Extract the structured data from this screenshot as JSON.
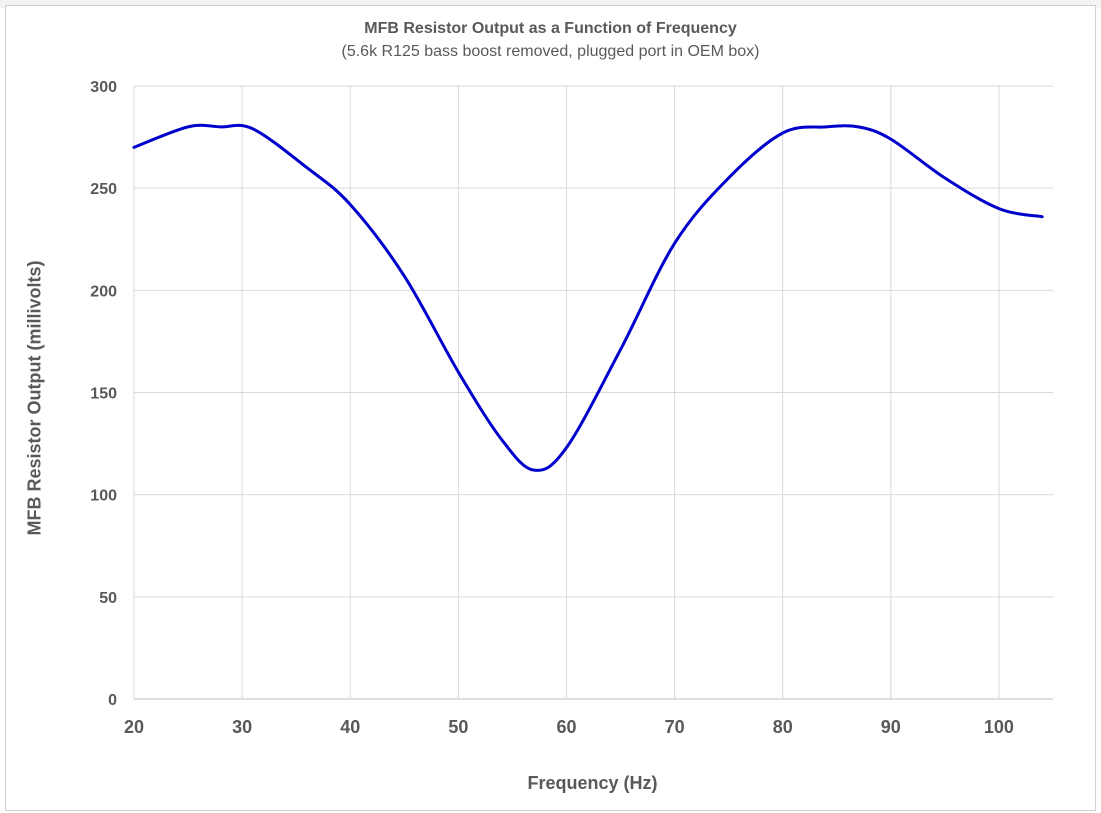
{
  "chart_data": {
    "type": "line",
    "title": "MFB Resistor Output as a Function of Frequency",
    "subtitle": "(5.6k R125 bass boost removed, plugged port in OEM box)",
    "xlabel": "Frequency (Hz)",
    "ylabel": "MFB Resistor Output (millivolts)",
    "xlim": [
      20,
      105
    ],
    "ylim": [
      0,
      300
    ],
    "x_ticks": [
      20,
      30,
      40,
      50,
      60,
      70,
      80,
      90,
      100
    ],
    "y_ticks": [
      0,
      50,
      100,
      150,
      200,
      250,
      300
    ],
    "grid": true,
    "legend": "none",
    "series": [
      {
        "color": "#0000cc",
        "x": [
          20,
          25,
          28,
          31,
          36,
          40,
          45,
          50,
          54,
          57,
          60,
          65,
          70,
          75,
          80,
          84,
          87,
          90,
          95,
          100,
          104
        ],
        "y": [
          270,
          280,
          280,
          279,
          260,
          242,
          207,
          160,
          127,
          112,
          123,
          171,
          223,
          255,
          277,
          280,
          280,
          274,
          255,
          240,
          236
        ]
      }
    ]
  }
}
